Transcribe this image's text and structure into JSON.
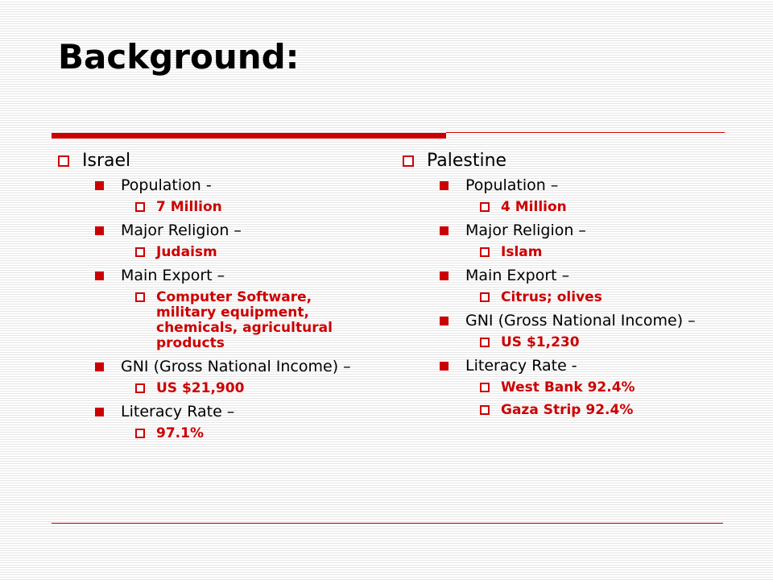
{
  "title": "Background:",
  "left": {
    "heading": "Israel",
    "items": [
      {
        "label": "Population -",
        "values": [
          "7 Million"
        ]
      },
      {
        "label": "Major Religion –",
        "values": [
          "Judaism"
        ]
      },
      {
        "label": "Main Export –",
        "values": [
          "Computer Software, military equipment, chemicals, agricultural products"
        ]
      },
      {
        "label": "GNI (Gross National Income) –",
        "values": [
          "US $21,900"
        ]
      },
      {
        "label": "Literacy Rate –",
        "values": [
          "97.1%"
        ]
      }
    ]
  },
  "right": {
    "heading": "Palestine",
    "items": [
      {
        "label": "Population –",
        "values": [
          "4 Million"
        ]
      },
      {
        "label": "Major Religion –",
        "values": [
          "Islam"
        ]
      },
      {
        "label": "Main Export –",
        "values": [
          "Citrus; olives"
        ]
      },
      {
        "label": "GNI (Gross National Income) –",
        "values": [
          "US $1,230"
        ]
      },
      {
        "label": "Literacy Rate -",
        "values": [
          "West Bank 92.4%",
          "Gaza Strip 92.4%"
        ]
      }
    ]
  }
}
